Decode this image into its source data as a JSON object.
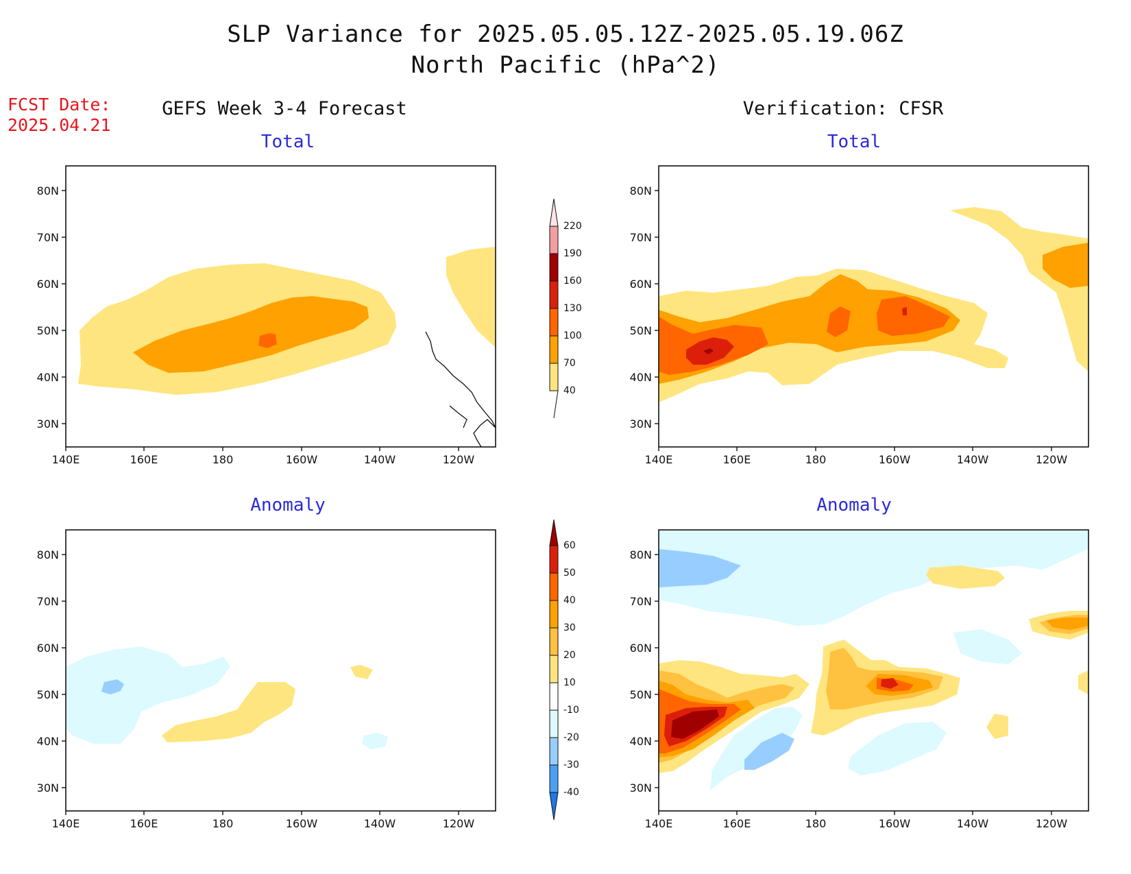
{
  "header": {
    "title_line1": "SLP Variance for 2025.05.05.12Z-2025.05.19.06Z",
    "title_line2": "North Pacific (hPa^2)",
    "fcst_label": "FCST Date:",
    "fcst_date": "2025.04.21"
  },
  "columns": {
    "left": "GEFS Week 3-4 Forecast",
    "right": "Verification: CFSR"
  },
  "panels": {
    "forecast_total": {
      "title": "Total"
    },
    "verif_total": {
      "title": "Total"
    },
    "forecast_anomaly": {
      "title": "Anomaly"
    },
    "verif_anomaly": {
      "title": "Anomaly"
    }
  },
  "axes": {
    "lat_labels": [
      "80N",
      "70N",
      "60N",
      "50N",
      "40N",
      "30N"
    ],
    "lon_labels": [
      "140E",
      "160E",
      "180",
      "160W",
      "140W",
      "120W"
    ]
  },
  "colorbars": {
    "total": {
      "labels": [
        "220",
        "190",
        "160",
        "130",
        "100",
        "70",
        "40"
      ],
      "colors": [
        "#f0a0a0",
        "#a00000",
        "#dc1f0a",
        "#ff6600",
        "#ffa100",
        "#ffe57f"
      ]
    },
    "anomaly": {
      "labels": [
        "60",
        "50",
        "40",
        "30",
        "20",
        "10",
        "-10",
        "-20",
        "-30",
        "-40"
      ],
      "colors": [
        "#c41005",
        "#ff6600",
        "#ffa100",
        "#ffc140",
        "#ffe57f",
        "#ffffff",
        "#dcfaff",
        "#98ceff",
        "#4aa0f5",
        "#1f78e6"
      ]
    }
  },
  "legend_colors": {
    "v40": "#ffe57f",
    "v70": "#ffa100",
    "v100": "#ff6600",
    "v130": "#dc1f0a",
    "v160": "#a00000",
    "a10": "#ffe57f",
    "a20": "#ffc140",
    "a30": "#ffa100",
    "a40": "#ff6600",
    "a50": "#dc1f0a",
    "a60": "#a00000",
    "am10": "#dcfaff",
    "am20": "#98ceff"
  }
}
